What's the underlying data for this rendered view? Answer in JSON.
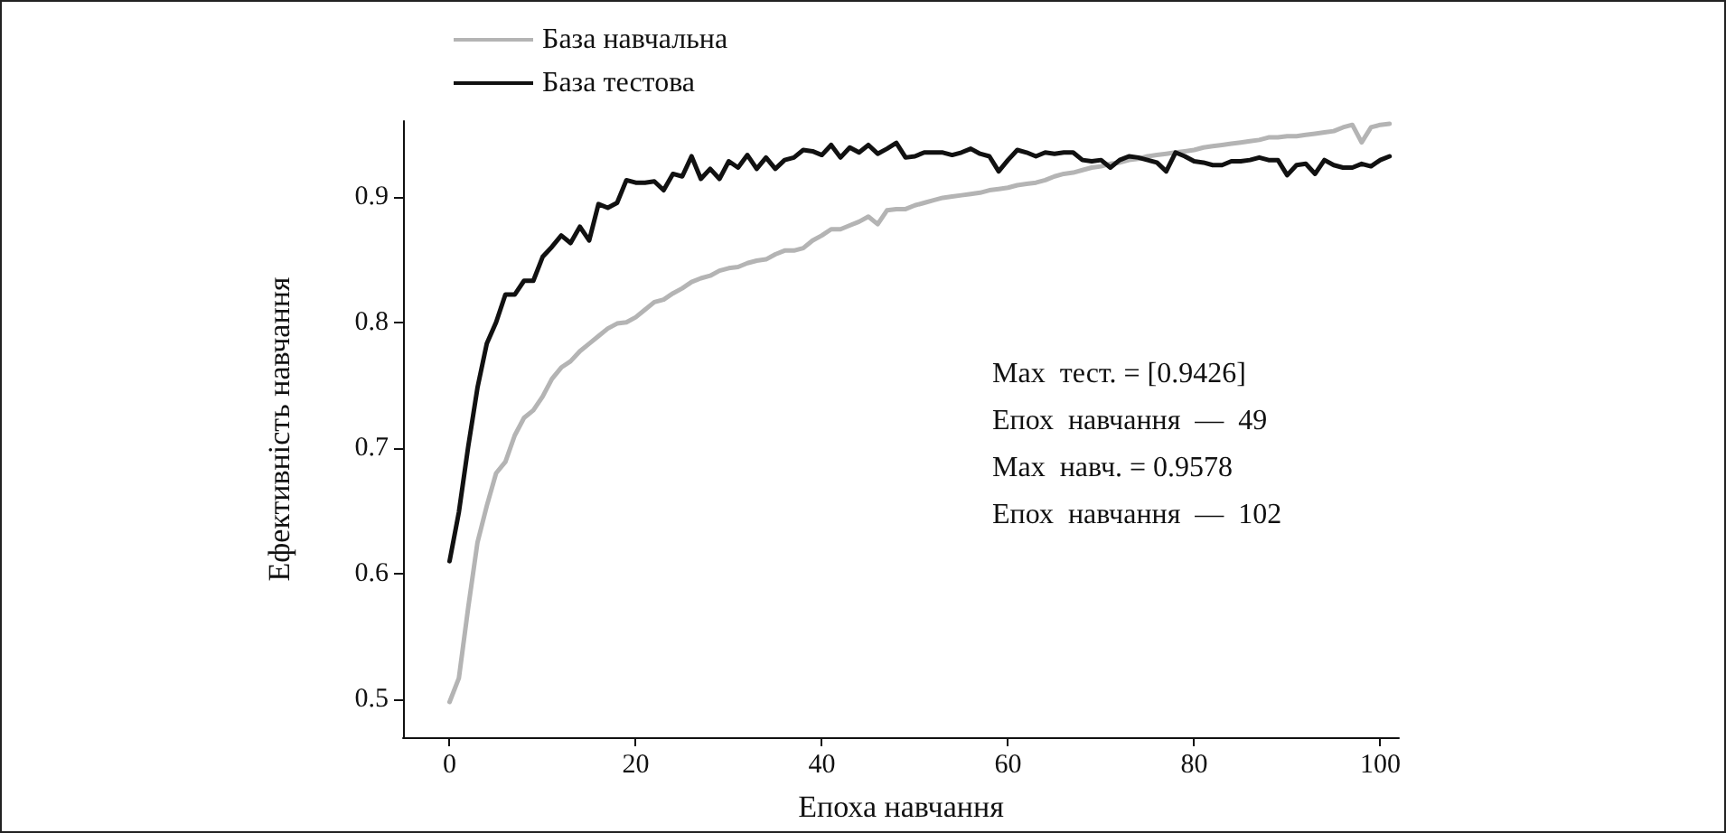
{
  "chart_data": {
    "type": "line",
    "xlabel": "Епоха навчання",
    "ylabel": "Ефективність навчання",
    "x": [
      0,
      1,
      2,
      3,
      4,
      5,
      6,
      7,
      8,
      9,
      10,
      11,
      12,
      13,
      14,
      15,
      16,
      17,
      18,
      19,
      20,
      21,
      22,
      23,
      24,
      25,
      26,
      27,
      28,
      29,
      30,
      31,
      32,
      33,
      34,
      35,
      36,
      37,
      38,
      39,
      40,
      41,
      42,
      43,
      44,
      45,
      46,
      47,
      48,
      49,
      50,
      51,
      52,
      53,
      54,
      55,
      56,
      57,
      58,
      59,
      60,
      61,
      62,
      63,
      64,
      65,
      66,
      67,
      68,
      69,
      70,
      71,
      72,
      73,
      74,
      75,
      76,
      77,
      78,
      79,
      80,
      81,
      82,
      83,
      84,
      85,
      86,
      87,
      88,
      89,
      90,
      91,
      92,
      93,
      94,
      95,
      96,
      97,
      98,
      99,
      100,
      101
    ],
    "series": [
      {
        "name": "База навчальна",
        "color": "#b4b4b4",
        "values": [
          0.498,
          0.517,
          0.573,
          0.625,
          0.654,
          0.68,
          0.689,
          0.71,
          0.724,
          0.73,
          0.741,
          0.755,
          0.764,
          0.769,
          0.777,
          0.783,
          0.789,
          0.795,
          0.799,
          0.8,
          0.804,
          0.81,
          0.816,
          0.818,
          0.823,
          0.827,
          0.832,
          0.835,
          0.837,
          0.841,
          0.843,
          0.844,
          0.847,
          0.849,
          0.85,
          0.854,
          0.857,
          0.857,
          0.859,
          0.865,
          0.869,
          0.874,
          0.874,
          0.877,
          0.88,
          0.884,
          0.878,
          0.889,
          0.89,
          0.89,
          0.893,
          0.895,
          0.897,
          0.899,
          0.9,
          0.901,
          0.902,
          0.903,
          0.905,
          0.906,
          0.907,
          0.909,
          0.91,
          0.911,
          0.913,
          0.916,
          0.918,
          0.919,
          0.921,
          0.923,
          0.924,
          0.926,
          0.927,
          0.929,
          0.93,
          0.932,
          0.933,
          0.934,
          0.935,
          0.936,
          0.937,
          0.939,
          0.94,
          0.941,
          0.942,
          0.943,
          0.944,
          0.945,
          0.947,
          0.947,
          0.948,
          0.948,
          0.949,
          0.95,
          0.951,
          0.952,
          0.955,
          0.957,
          0.943,
          0.955,
          0.957,
          0.9578
        ]
      },
      {
        "name": "База тестова",
        "color": "#111111",
        "values": [
          0.61,
          0.649,
          0.701,
          0.748,
          0.783,
          0.8,
          0.822,
          0.822,
          0.833,
          0.833,
          0.852,
          0.86,
          0.869,
          0.863,
          0.876,
          0.865,
          0.894,
          0.891,
          0.895,
          0.913,
          0.911,
          0.911,
          0.912,
          0.905,
          0.918,
          0.916,
          0.932,
          0.914,
          0.922,
          0.914,
          0.928,
          0.923,
          0.933,
          0.922,
          0.931,
          0.922,
          0.929,
          0.931,
          0.937,
          0.936,
          0.933,
          0.941,
          0.931,
          0.939,
          0.935,
          0.941,
          0.934,
          0.938,
          0.9426,
          0.931,
          0.932,
          0.935,
          0.935,
          0.935,
          0.933,
          0.935,
          0.938,
          0.934,
          0.932,
          0.92,
          0.929,
          0.937,
          0.935,
          0.932,
          0.935,
          0.934,
          0.935,
          0.935,
          0.929,
          0.928,
          0.929,
          0.923,
          0.929,
          0.932,
          0.931,
          0.929,
          0.927,
          0.92,
          0.935,
          0.932,
          0.928,
          0.927,
          0.925,
          0.925,
          0.928,
          0.928,
          0.929,
          0.931,
          0.929,
          0.929,
          0.917,
          0.925,
          0.926,
          0.918,
          0.929,
          0.925,
          0.923,
          0.923,
          0.926,
          0.924,
          0.929,
          0.932
        ]
      }
    ],
    "xlim": [
      -5,
      102
    ],
    "xticks": [
      0,
      20,
      40,
      60,
      80,
      100
    ],
    "ylim": [
      0.47,
      0.96
    ],
    "yticks": [
      0.5,
      0.6,
      0.7,
      0.8,
      0.9
    ],
    "grid": false,
    "legend": "top left",
    "marker": "none",
    "line_style": "solid",
    "annotations": [
      "Max  тест. = [0.9426]",
      "Епох  навчання  —  49",
      "Max  навч. = 0.9578",
      "Епох  навчання  —  102"
    ]
  }
}
